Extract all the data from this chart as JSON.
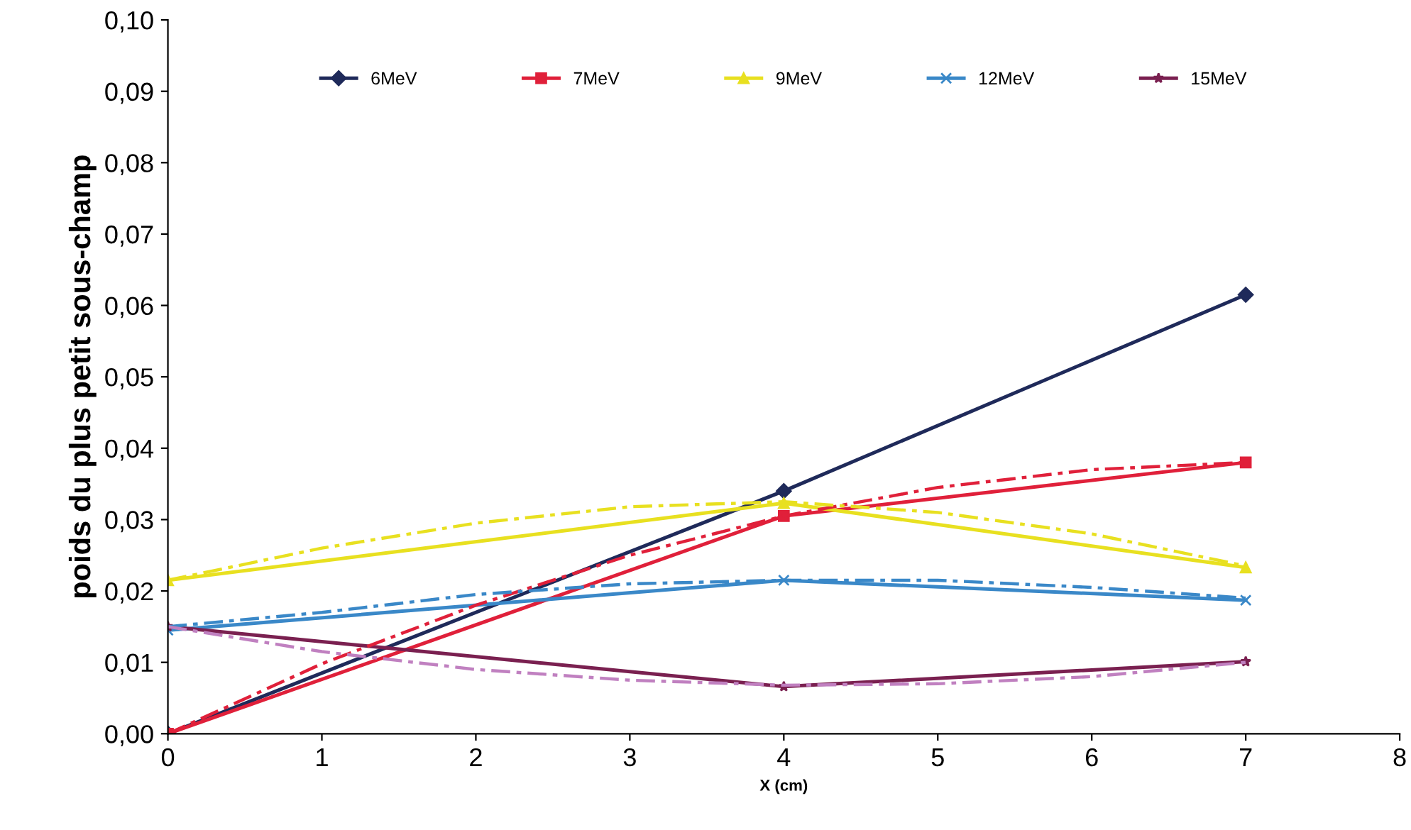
{
  "chart_data": {
    "type": "line",
    "xlabel": "X (cm)",
    "ylabel": "poids du plus petit sous-champ",
    "xlim": [
      0,
      8
    ],
    "xticks": [
      0,
      1,
      2,
      3,
      4,
      5,
      6,
      7,
      8
    ],
    "ylim": [
      0,
      0.1
    ],
    "yticks": [
      {
        "value": 0,
        "label": "0,00"
      },
      {
        "value": 0.01,
        "label": "0,01"
      },
      {
        "value": 0.02,
        "label": "0,02"
      },
      {
        "value": 0.03,
        "label": "0,03"
      },
      {
        "value": 0.04,
        "label": "0,04"
      },
      {
        "value": 0.05,
        "label": "0,05"
      },
      {
        "value": 0.06,
        "label": "0,06"
      },
      {
        "value": 0.07,
        "label": "0,07"
      },
      {
        "value": 0.08,
        "label": "0,08"
      },
      {
        "value": 0.09,
        "label": "0,09"
      },
      {
        "value": 0.1,
        "label": "0,10"
      }
    ],
    "grid": false,
    "legend": "top",
    "series": [
      {
        "name": "6MeV",
        "color": "#1f2a5a",
        "marker": "diamond",
        "line_style": "solid",
        "x": [
          0,
          4,
          7
        ],
        "values": [
          0.0,
          0.034,
          0.0615
        ]
      },
      {
        "name": "7MeV",
        "color": "#e0203a",
        "marker": "square",
        "line_style": "solid",
        "x": [
          0,
          4,
          7
        ],
        "values": [
          0.0,
          0.0305,
          0.038
        ]
      },
      {
        "name": "9MeV",
        "color": "#e8e020",
        "marker": "triangle",
        "line_style": "solid",
        "x": [
          0,
          4,
          7
        ],
        "values": [
          0.0215,
          0.0323,
          0.0233
        ]
      },
      {
        "name": "12MeV",
        "color": "#3a88c8",
        "marker": "cross",
        "line_style": "solid",
        "x": [
          0,
          4,
          7
        ],
        "values": [
          0.0145,
          0.0215,
          0.0187
        ]
      },
      {
        "name": "15MeV",
        "color": "#7a2050",
        "marker": "star",
        "line_style": "solid",
        "x": [
          0,
          4,
          7
        ],
        "values": [
          0.015,
          0.0066,
          0.0101
        ]
      },
      {
        "color": "#e0203a",
        "marker": "none",
        "line_style": "dashed",
        "x": [
          0,
          1,
          2,
          3,
          4,
          5,
          6,
          7
        ],
        "values": [
          0.0,
          0.0098,
          0.018,
          0.025,
          0.0305,
          0.0345,
          0.037,
          0.038
        ]
      },
      {
        "color": "#e8e020",
        "marker": "none",
        "line_style": "dashed",
        "x": [
          0,
          1,
          2,
          3,
          4,
          5,
          6,
          7
        ],
        "values": [
          0.0215,
          0.026,
          0.0295,
          0.0318,
          0.0325,
          0.031,
          0.028,
          0.0235
        ]
      },
      {
        "color": "#3a88c8",
        "marker": "none",
        "line_style": "dashed",
        "x": [
          0,
          1,
          2,
          3,
          4,
          5,
          6,
          7
        ],
        "values": [
          0.015,
          0.017,
          0.0195,
          0.021,
          0.0215,
          0.0215,
          0.0205,
          0.019
        ]
      },
      {
        "color": "#c080c0",
        "marker": "none",
        "line_style": "dashed",
        "x": [
          0,
          1,
          2,
          3,
          4,
          5,
          6,
          7
        ],
        "values": [
          0.015,
          0.0115,
          0.009,
          0.0075,
          0.0068,
          0.007,
          0.008,
          0.01
        ]
      }
    ]
  }
}
